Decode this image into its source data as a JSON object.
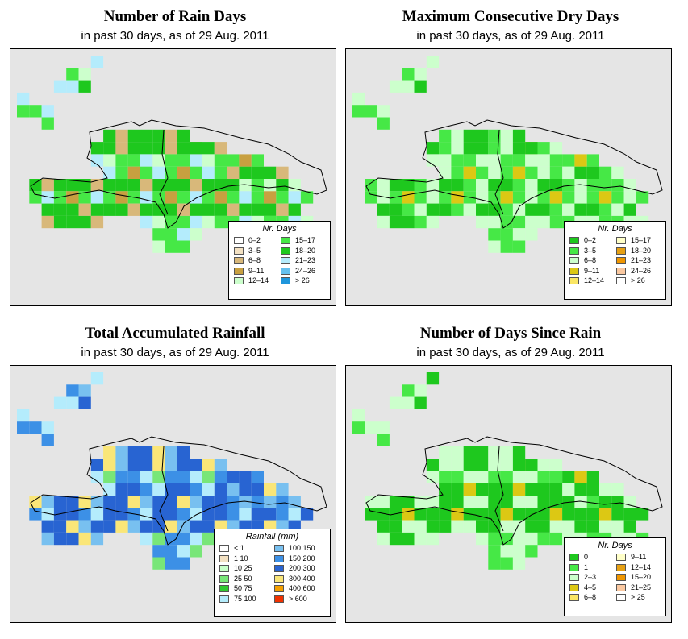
{
  "panels": [
    {
      "id": "rain-days",
      "title": "Number of Rain Days",
      "subtitle": "in past 30 days, as of  29 Aug. 2011",
      "legend": {
        "title": "Nr. Days",
        "items": [
          {
            "label": "0–2",
            "color": "#ffffff"
          },
          {
            "label": "3–5",
            "color": "#f3e1c2"
          },
          {
            "label": "6–8",
            "color": "#d8b87a"
          },
          {
            "label": "9–11",
            "color": "#c8a040"
          },
          {
            "label": "12–14",
            "color": "#ccffcc"
          },
          {
            "label": "15–17",
            "color": "#46e846"
          },
          {
            "label": "18–20",
            "color": "#1ec81e"
          },
          {
            "label": "21–23",
            "color": "#b4ecfc"
          },
          {
            "label": "24–26",
            "color": "#64c0ee"
          },
          {
            "label": "> 26",
            "color": "#1e96dc"
          }
        ]
      },
      "fills": [
        "#ccffcc",
        "#46e846",
        "#1ec81e",
        "#46e846",
        "#1ec81e",
        "#b4ecfc",
        "#1ec81e",
        "#46e846",
        "#ccffcc",
        "#46e846",
        "#1ec81e",
        "#b4ecfc",
        "#46e846",
        "#c8a040",
        "#d8b87a",
        "#ccffcc"
      ]
    },
    {
      "id": "dry-days",
      "title": "Maximum Consecutive Dry Days",
      "subtitle": "in past 30 days, as of  29 Aug. 2011",
      "legend": {
        "title": "Nr. Days",
        "items": [
          {
            "label": "0–2",
            "color": "#1ec81e"
          },
          {
            "label": "3–5",
            "color": "#46e846"
          },
          {
            "label": "6–8",
            "color": "#ccffcc"
          },
          {
            "label": "9–11",
            "color": "#dcc814"
          },
          {
            "label": "12–14",
            "color": "#fae664"
          },
          {
            "label": "15–17",
            "color": "#ffffc8"
          },
          {
            "label": "18–20",
            "color": "#e6a014"
          },
          {
            "label": "21–23",
            "color": "#f09600"
          },
          {
            "label": "24–26",
            "color": "#fac8a0"
          },
          {
            "label": "> 26",
            "color": "#ffffff"
          }
        ]
      },
      "fills": [
        "#46e846",
        "#46e846",
        "#1ec81e",
        "#46e846",
        "#46e846",
        "#ccffcc",
        "#1ec81e",
        "#46e846",
        "#ccffcc",
        "#46e846",
        "#46e846",
        "#ccffcc",
        "#46e846",
        "#dcc814",
        "#ccffcc",
        "#ccffcc"
      ]
    },
    {
      "id": "rainfall",
      "title": "Total Accumulated Rainfall",
      "subtitle": "in past 30 days, as of  29 Aug. 2011",
      "legend": {
        "title": "Rainfall (mm)",
        "items": [
          {
            "label": "< 1",
            "color": "#ffffff"
          },
          {
            "label": "1    10",
            "color": "#f3e1c2"
          },
          {
            "label": "10    25",
            "color": "#c8ffc8"
          },
          {
            "label": "25    50",
            "color": "#78e678"
          },
          {
            "label": "50    75",
            "color": "#32c832"
          },
          {
            "label": "75   100",
            "color": "#b4ecfc"
          },
          {
            "label": "100   150",
            "color": "#78c0f0"
          },
          {
            "label": "150   200",
            "color": "#3c90e6"
          },
          {
            "label": "200   300",
            "color": "#2864d2"
          },
          {
            "label": "300   400",
            "color": "#fae678"
          },
          {
            "label": "400   600",
            "color": "#f5a000"
          },
          {
            "label": "> 600",
            "color": "#f03200"
          }
        ]
      },
      "fills": [
        "#78c0f0",
        "#3c90e6",
        "#2864d2",
        "#3c90e6",
        "#3c90e6",
        "#b4ecfc",
        "#2864d2",
        "#3c90e6",
        "#78c0f0",
        "#2864d2",
        "#fae678",
        "#b4ecfc",
        "#3c90e6",
        "#2864d2",
        "#78c0f0",
        "#78e678"
      ]
    },
    {
      "id": "days-since-rain",
      "title": "Number of Days Since Rain",
      "subtitle": "in past 30 days, as of  29 Aug. 2011",
      "legend": {
        "title": "Nr. Days",
        "items": [
          {
            "label": "0",
            "color": "#1ec81e"
          },
          {
            "label": "1",
            "color": "#46e846"
          },
          {
            "label": "2–3",
            "color": "#ccffcc"
          },
          {
            "label": "4–5",
            "color": "#dcc814"
          },
          {
            "label": "6–8",
            "color": "#fae664"
          },
          {
            "label": "9–11",
            "color": "#ffffc8"
          },
          {
            "label": "12–14",
            "color": "#e6a014"
          },
          {
            "label": "15–20",
            "color": "#f09600"
          },
          {
            "label": "21–25",
            "color": "#fac8a0"
          },
          {
            "label": "> 25",
            "color": "#ffffff"
          }
        ]
      },
      "fills": [
        "#1ec81e",
        "#1ec81e",
        "#1ec81e",
        "#46e846",
        "#1ec81e",
        "#1ec81e",
        "#1ec81e",
        "#ccffcc",
        "#ccffcc",
        "#1ec81e",
        "#ccffcc",
        "#ccffcc",
        "#46e846",
        "#dcc814",
        "#ccffcc",
        "#46e846"
      ]
    }
  ]
}
